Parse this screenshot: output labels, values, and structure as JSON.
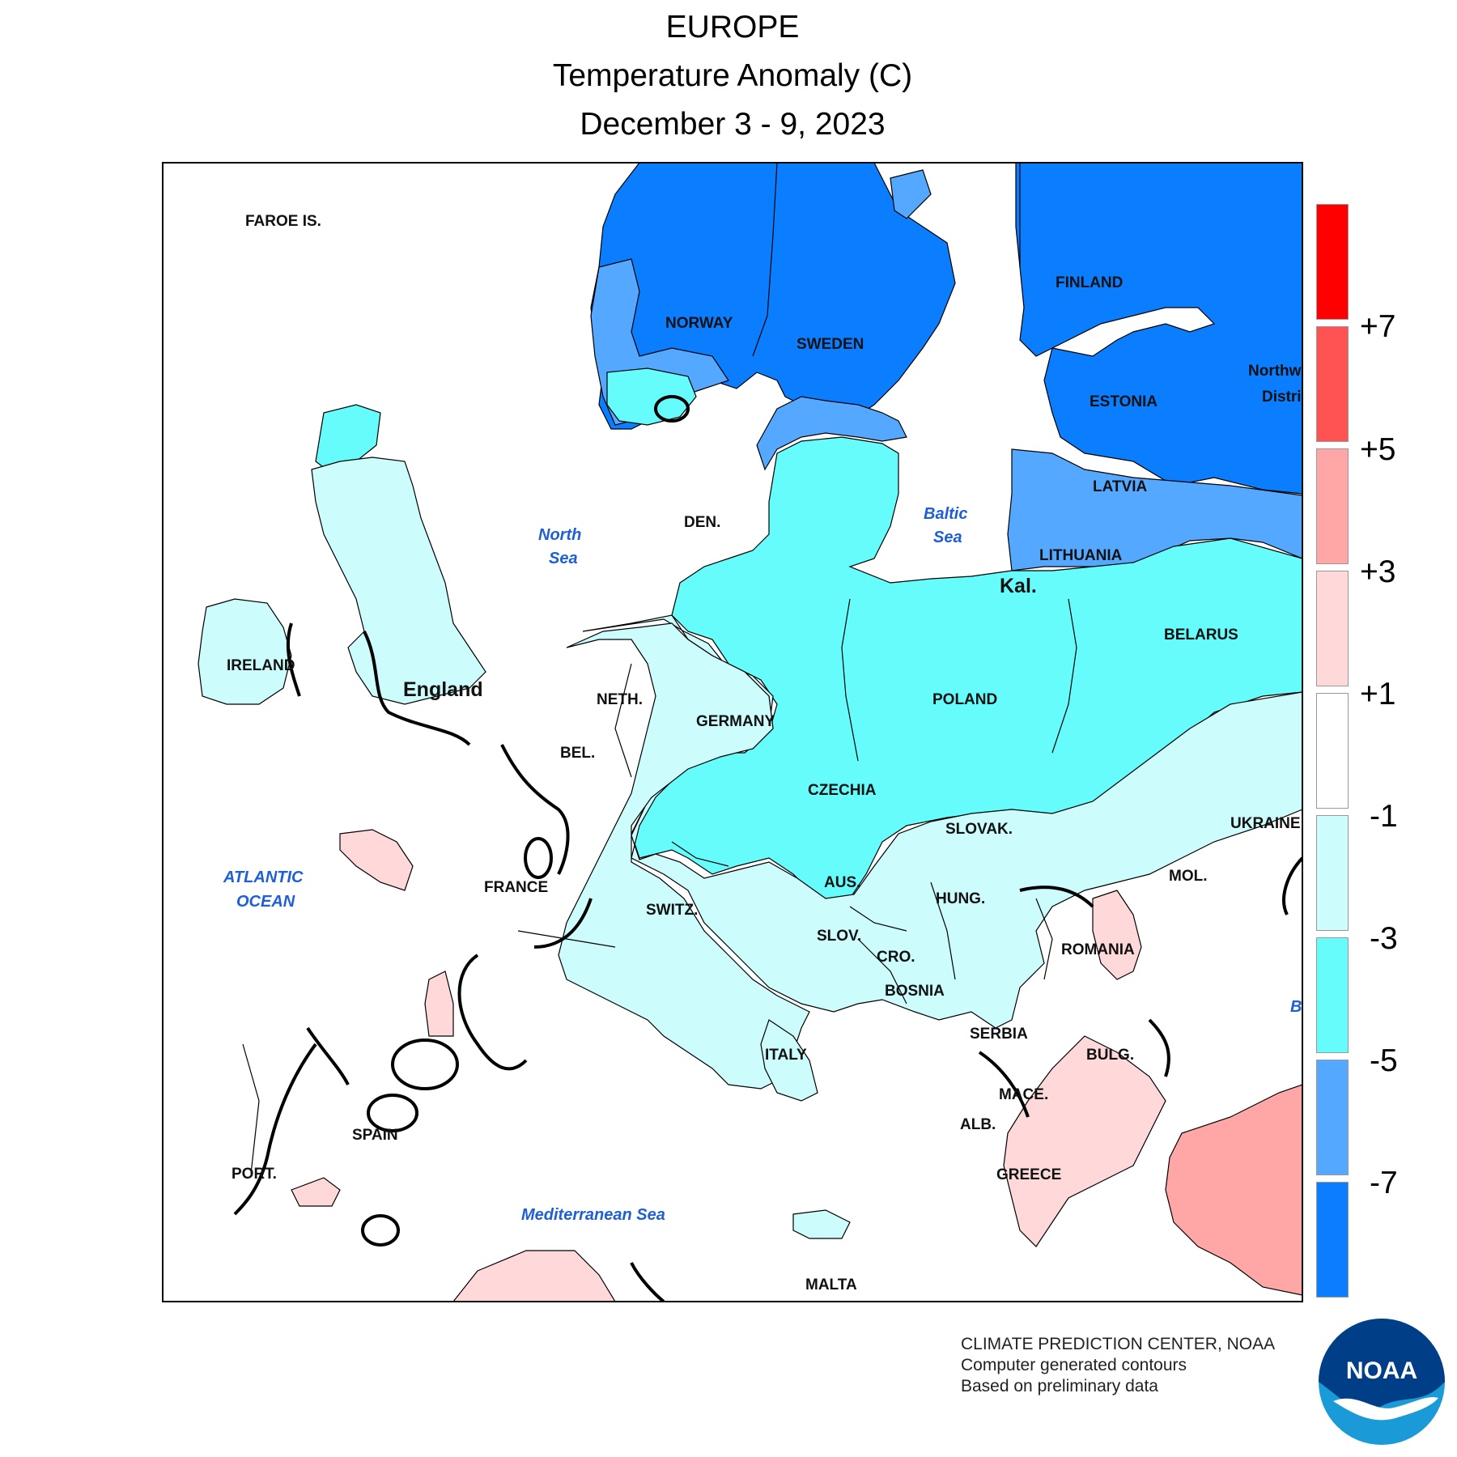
{
  "title": {
    "line1": "EUROPE",
    "line2": "Temperature Anomaly (C)",
    "line3": "December 3 - 9, 2023"
  },
  "legend": {
    "bins": [
      {
        "color": "#ff0000"
      },
      {
        "color": "#ff5252"
      },
      {
        "color": "#ffa6a6"
      },
      {
        "color": "#ffd9d9"
      },
      {
        "color": "#ffffff"
      },
      {
        "color": "#ccfcfc"
      },
      {
        "color": "#66fcfc"
      },
      {
        "color": "#55a8ff"
      },
      {
        "color": "#0b7dff"
      }
    ],
    "values": [
      "+7",
      "+5",
      "+3",
      "+1",
      "-1",
      "-3",
      "-5",
      "-7"
    ]
  },
  "labels": {
    "faroe": "FAROE IS.",
    "norway": "NORWAY",
    "sweden": "SWEDEN",
    "finland": "FINLAND",
    "estonia": "ESTONIA",
    "latvia": "LATVIA",
    "lithuania": "LITHUANIA",
    "kal": "Kal.",
    "belarus": "BELARUS",
    "poland": "POLAND",
    "den": "DEN.",
    "ireland": "IRELAND",
    "england": "England",
    "neth": "NETH.",
    "bel": "BEL.",
    "germany": "GERMANY",
    "czechia": "CZECHIA",
    "slovak": "SLOVAK.",
    "ukraine": "UKRAINE",
    "mol": "MOL.",
    "hung": "HUNG.",
    "aus": "AUS.",
    "switz": "SWITZ.",
    "france": "FRANCE",
    "slov": "SLOV.",
    "cro": "CRO.",
    "bosnia": "BOSNIA",
    "romania": "ROMANIA",
    "serbia": "SERBIA",
    "bulg": "BULG.",
    "mace": "MACE.",
    "alb": "ALB.",
    "greece": "GREECE",
    "italy": "ITALY",
    "spain": "SPAIN",
    "port": "PORT.",
    "malta": "MALTA",
    "nw1": "Northw",
    "nw2": "Distri",
    "bsea": "B"
  },
  "seas": {
    "north1": "North",
    "north2": "Sea",
    "baltic1": "Baltic",
    "baltic2": "Sea",
    "atlantic1": "ATLANTIC",
    "atlantic2": "OCEAN",
    "med": "Mediterranean Sea"
  },
  "credits": {
    "line1": "CLIMATE PREDICTION CENTER, NOAA",
    "line2": "Computer generated contours",
    "line3": "Based on preliminary data",
    "logo_text": "NOAA"
  }
}
